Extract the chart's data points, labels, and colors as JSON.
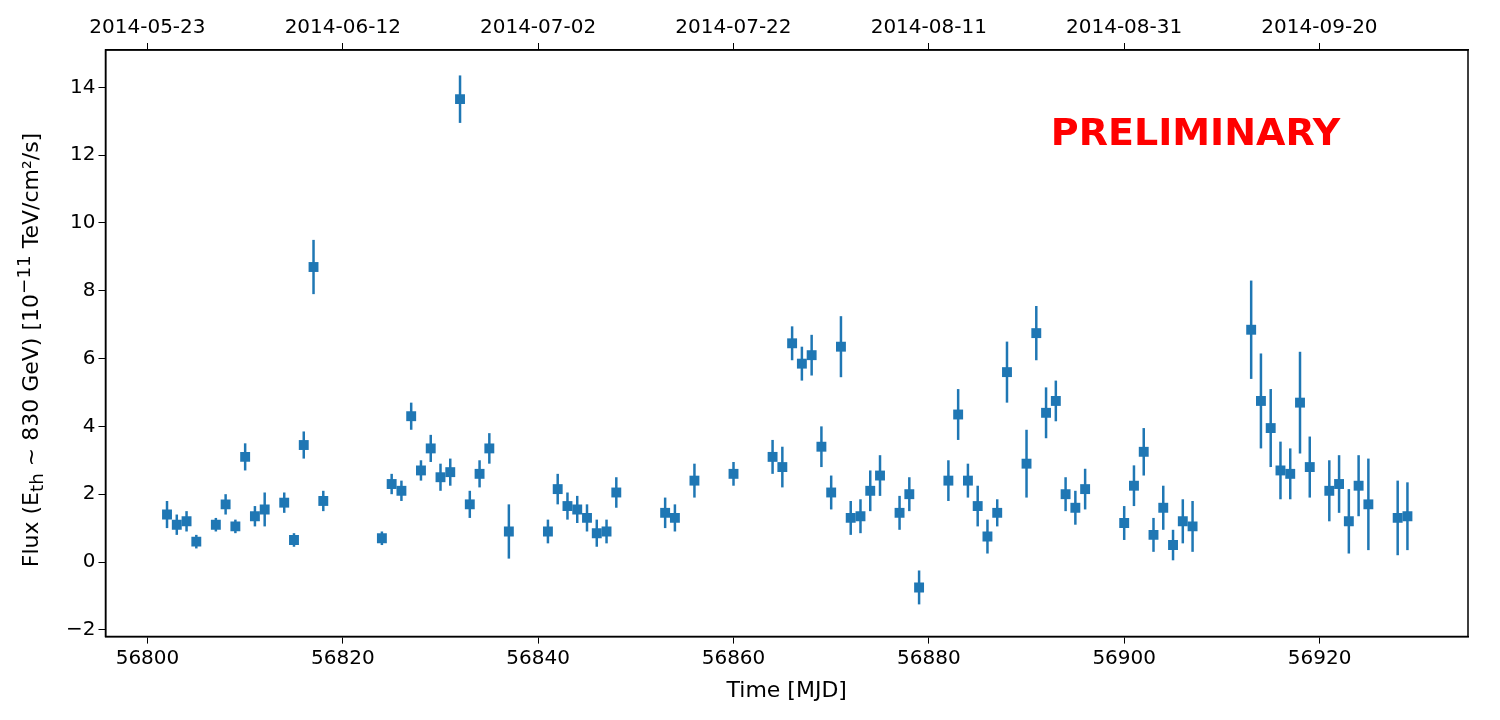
{
  "chart_data": {
    "type": "scatter",
    "xlabel": "Time [MJD]",
    "ylabel": "Flux (E$_{th}$ ~ 830 GeV) [10$^{−11}$ TeV/cm²/s]",
    "annotations": [
      "PRELIMINARY"
    ],
    "marker": "square",
    "grid": false,
    "xlim": [
      56795.7,
      56935.2
    ],
    "xticks": [
      56800,
      56820,
      56840,
      56860,
      56880,
      56900,
      56920
    ],
    "x2lim": [
      "2014-05-18T17:00",
      "2014-10-05T05:00"
    ],
    "x2ticks": [
      "2014-05-23",
      "2014-06-12",
      "2014-07-02",
      "2014-07-22",
      "2014-08-11",
      "2014-08-31",
      "2014-09-20"
    ],
    "ylim": [
      -2.2,
      15.1
    ],
    "yticks": [
      {
        "value": -2,
        "label": "−2"
      },
      0,
      2,
      4,
      6,
      8,
      10,
      12,
      14
    ],
    "series": [
      {
        "color": "#1f77b4",
        "x": [
          56802,
          56803,
          56804,
          56805,
          56807,
          56808,
          56809,
          56810,
          56811,
          56812,
          56814,
          56815,
          56816,
          56817,
          56818,
          56824,
          56825,
          56826,
          56827,
          56828,
          56829,
          56830,
          56831,
          56832,
          56833,
          56834,
          56835,
          56837,
          56841,
          56842,
          56843,
          56844,
          56845,
          56846,
          56847,
          56848,
          56853,
          56854,
          56856,
          56860,
          56864,
          56865,
          56866,
          56867,
          56868,
          56869,
          56870,
          56871,
          56872,
          56873,
          56874,
          56875,
          56877,
          56878,
          56879,
          56882,
          56883,
          56884,
          56885,
          56886,
          56887,
          56888,
          56890,
          56891,
          56892,
          56893,
          56894,
          56895,
          56896,
          56900,
          56901,
          56902,
          56903,
          56904,
          56905,
          56906,
          56907,
          56913,
          56914,
          56915,
          56916,
          56917,
          56918,
          56919,
          56921,
          56922,
          56923,
          56924,
          56925,
          56928,
          56929
        ],
        "values": [
          1.4,
          1.1,
          1.2,
          0.6,
          1.1,
          1.7,
          1.05,
          3.1,
          1.35,
          1.55,
          1.75,
          0.65,
          3.45,
          8.7,
          1.8,
          0.7,
          2.3,
          2.1,
          4.3,
          2.7,
          3.35,
          2.5,
          2.65,
          13.65,
          1.7,
          2.6,
          3.35,
          0.9,
          0.9,
          2.15,
          1.65,
          1.55,
          1.3,
          0.85,
          0.9,
          2.05,
          1.45,
          1.3,
          2.4,
          2.6,
          3.1,
          2.8,
          6.45,
          5.85,
          6.1,
          3.4,
          2.05,
          6.35,
          1.3,
          1.35,
          2.1,
          2.55,
          1.45,
          2.0,
          -0.75,
          2.4,
          4.35,
          2.4,
          1.65,
          0.75,
          1.45,
          5.6,
          2.9,
          6.75,
          4.4,
          4.75,
          2.0,
          1.6,
          2.15,
          1.15,
          2.25,
          3.25,
          0.8,
          1.6,
          0.5,
          1.2,
          1.05,
          6.85,
          4.75,
          3.95,
          2.7,
          2.6,
          4.7,
          2.8,
          2.1,
          2.3,
          1.2,
          2.25,
          1.7,
          1.3,
          1.35
        ],
        "errors": [
          0.4,
          0.3,
          0.3,
          0.2,
          0.2,
          0.3,
          0.2,
          0.4,
          0.3,
          0.5,
          0.3,
          0.2,
          0.4,
          0.8,
          0.3,
          0.2,
          0.3,
          0.3,
          0.4,
          0.3,
          0.4,
          0.4,
          0.4,
          0.7,
          0.4,
          0.4,
          0.45,
          0.8,
          0.35,
          0.45,
          0.4,
          0.4,
          0.4,
          0.4,
          0.35,
          0.45,
          0.45,
          0.4,
          0.5,
          0.35,
          0.5,
          0.6,
          0.5,
          0.5,
          0.6,
          0.6,
          0.5,
          0.9,
          0.5,
          0.5,
          0.6,
          0.6,
          0.5,
          0.5,
          0.5,
          0.6,
          0.75,
          0.5,
          0.6,
          0.5,
          0.4,
          0.9,
          1.0,
          0.8,
          0.75,
          0.6,
          0.5,
          0.5,
          0.6,
          0.5,
          0.6,
          0.7,
          0.5,
          0.65,
          0.45,
          0.65,
          0.75,
          1.45,
          1.4,
          1.15,
          0.85,
          0.75,
          1.5,
          0.9,
          0.9,
          0.85,
          0.95,
          0.9,
          1.35,
          1.1,
          1.0
        ]
      }
    ]
  }
}
